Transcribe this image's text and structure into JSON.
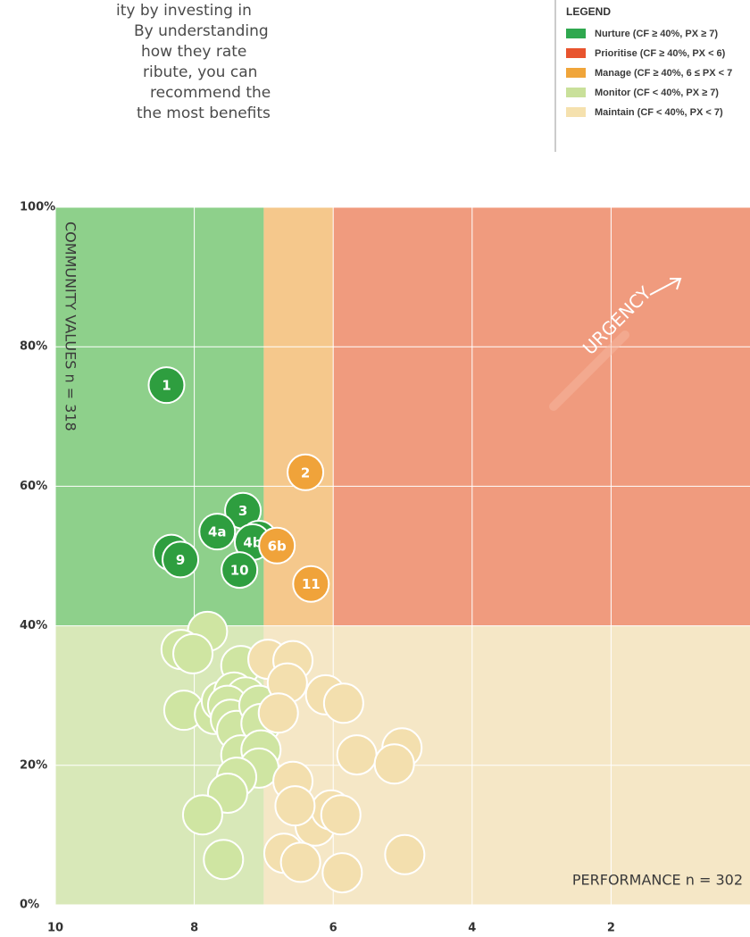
{
  "intro_lines": [
    "ity by investing in",
    "By understanding",
    "how they rate",
    "ribute, you can",
    "recommend the",
    "the most benefits"
  ],
  "chart_data": {
    "type": "scatter",
    "legend_title": "LEGEND",
    "y_label": "COMMUNITY VALUES  n = 318",
    "x_label": "PERFORMANCE n = 302",
    "annotation": "URGENCY",
    "xlim": [
      10,
      0
    ],
    "xticks": [
      10,
      8,
      6,
      4,
      2
    ],
    "ylim": [
      0,
      100
    ],
    "yticks": [
      {
        "value": 0,
        "label": "0%"
      },
      {
        "value": 20,
        "label": "20%"
      },
      {
        "value": 40,
        "label": "40%"
      },
      {
        "value": 60,
        "label": "60%"
      },
      {
        "value": 80,
        "label": "80%"
      },
      {
        "value": 100,
        "label": "100%"
      }
    ],
    "grid": true,
    "regions": [
      {
        "name": "Nurture (CF ≥ 40%, PX ≥ 7)",
        "color": "#2fa84f",
        "fill": "#8ed08b",
        "xlim": [
          10,
          7
        ],
        "ylim": [
          40,
          100
        ]
      },
      {
        "name": "Prioritise (CF ≥ 40%, PX < 6)",
        "color": "#e8542e",
        "fill": "#f09b7e",
        "xlim": [
          6,
          0
        ],
        "ylim": [
          40,
          100
        ]
      },
      {
        "name": "Manage (CF ≥ 40%, 6 ≤ PX < 7",
        "color": "#f0a53a",
        "fill": "#f5c88c",
        "xlim": [
          7,
          6
        ],
        "ylim": [
          40,
          100
        ]
      },
      {
        "name": "Monitor (CF < 40%, PX ≥ 7)",
        "color": "#c9e09a",
        "fill": "#d8e8b8",
        "xlim": [
          10,
          7
        ],
        "ylim": [
          0,
          40
        ]
      },
      {
        "name": "Maintain (CF < 40%,  PX < 7)",
        "color": "#f5e1ae",
        "fill": "#f5e7c6",
        "xlim": [
          7,
          0
        ],
        "ylim": [
          0,
          40
        ]
      }
    ],
    "series": [
      {
        "color": "#cfe5a2",
        "x": [
          7.81,
          8.19,
          8.02,
          8.15,
          7.71,
          7.33,
          7.61,
          7.43,
          7.26,
          7.52,
          7.48,
          7.39,
          7.07,
          7.04,
          7.33,
          7.04,
          7.07,
          7.39,
          7.52,
          7.88,
          7.58
        ],
        "values": [
          39.2,
          36.6,
          36.0,
          27.9,
          27.3,
          34.3,
          29.2,
          30.5,
          29.8,
          28.6,
          26.6,
          25.0,
          28.6,
          26.0,
          21.5,
          22.2,
          19.6,
          18.3,
          16.0,
          12.9,
          6.5
        ]
      },
      {
        "color": "#f3dfae",
        "x": [
          6.94,
          6.58,
          6.66,
          6.79,
          6.11,
          5.85,
          5.66,
          5.01,
          5.12,
          6.58,
          6.26,
          6.03,
          5.89,
          6.55,
          6.71,
          6.47,
          5.87,
          4.97
        ],
        "values": [
          35.2,
          35.0,
          31.8,
          27.5,
          30.1,
          28.9,
          21.5,
          22.5,
          20.2,
          17.7,
          11.3,
          13.6,
          12.9,
          14.2,
          7.4,
          6.1,
          4.6,
          7.2
        ]
      },
      {
        "color": "#2e9e3f",
        "x": [
          8.4,
          8.33,
          7.3,
          7.67,
          7.07,
          7.16,
          8.2,
          7.35
        ],
        "values": [
          74.5,
          50.5,
          56.5,
          53.5,
          52.5,
          52,
          49.5,
          48
        ],
        "labels": [
          "1",
          null,
          "3",
          "4a",
          null,
          "4b",
          "9",
          "10"
        ]
      },
      {
        "color": "#f0a33a",
        "x": [
          6.4,
          6.81,
          6.32
        ],
        "values": [
          62,
          51.5,
          46
        ],
        "labels": [
          "2",
          "6b",
          "11"
        ]
      }
    ]
  }
}
